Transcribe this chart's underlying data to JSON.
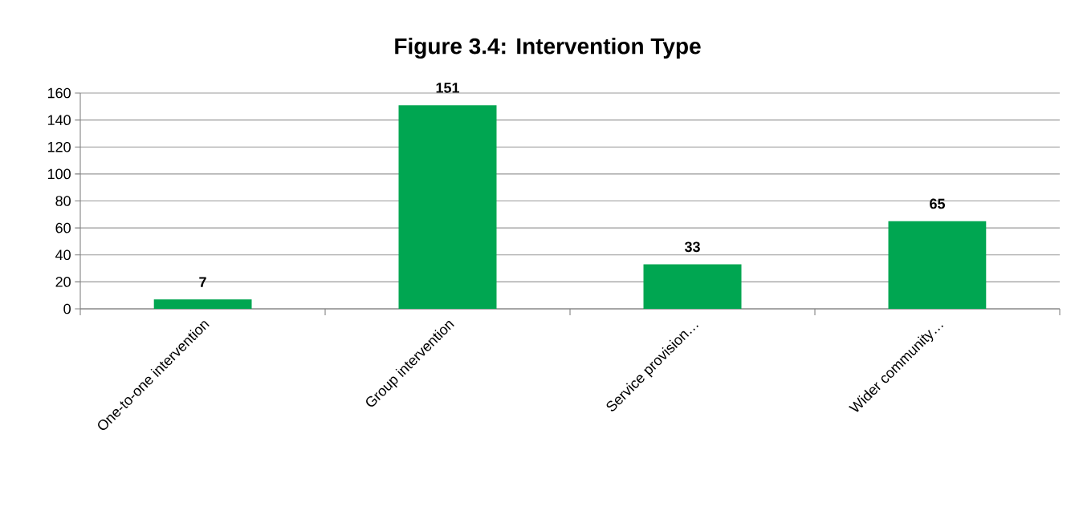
{
  "chart_data": {
    "type": "bar",
    "title": "Figure 3.4: Intervention Type",
    "categories": [
      "One-to-one intervention",
      "Group intervention",
      "Service provision…",
      "Wider community…"
    ],
    "values": [
      7,
      151,
      33,
      65
    ],
    "color": "#00a651",
    "data_labels": true,
    "ylim": [
      0,
      160
    ],
    "yticks": [
      0,
      20,
      40,
      60,
      80,
      100,
      120,
      140,
      160
    ],
    "grid": "y"
  }
}
